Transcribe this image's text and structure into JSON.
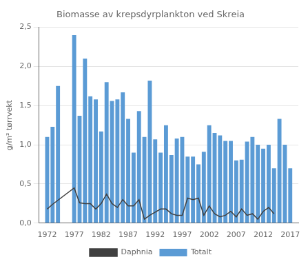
{
  "chart_data": {
    "type": "bar",
    "title": "Biomasse av krepsdyrplankton ved Skreia",
    "ylabel": "g/m² tørrvekt",
    "series": [
      {
        "name": "Totalt",
        "type": "bar",
        "color": "#5B9BD5",
        "x": [
          1972,
          1973,
          1974,
          1977,
          1978,
          1979,
          1980,
          1981,
          1982,
          1983,
          1984,
          1985,
          1986,
          1987,
          1988,
          1989,
          1990,
          1991,
          1992,
          1993,
          1994,
          1995,
          1996,
          1997,
          1998,
          1999,
          2000,
          2001,
          2002,
          2003,
          2004,
          2005,
          2006,
          2007,
          2008,
          2009,
          2010,
          2011,
          2012,
          2013,
          2014,
          2015,
          2016,
          2017
        ],
        "values": [
          1.1,
          1.23,
          1.75,
          2.4,
          1.37,
          2.1,
          1.62,
          1.58,
          1.17,
          1.8,
          1.56,
          1.58,
          1.67,
          1.33,
          0.9,
          1.43,
          1.1,
          1.82,
          1.07,
          0.9,
          1.25,
          0.87,
          1.08,
          1.1,
          0.85,
          0.85,
          0.75,
          0.91,
          1.25,
          1.15,
          1.12,
          1.05,
          1.05,
          0.8,
          0.81,
          1.04,
          1.1,
          1.0,
          0.95,
          1.0,
          0.7,
          1.33,
          1.0,
          0.7
        ]
      },
      {
        "name": "Daphnia",
        "type": "line",
        "color": "#404040",
        "marker": "none",
        "x": [
          1972,
          1973,
          1977,
          1978,
          1979,
          1980,
          1981,
          1982,
          1983,
          1984,
          1985,
          1986,
          1987,
          1988,
          1989,
          1990,
          1991,
          1992,
          1993,
          1994,
          1995,
          1996,
          1997,
          1998,
          1999,
          2000,
          2001,
          2002,
          2003,
          2004,
          2005,
          2006,
          2007,
          2008,
          2009,
          2010,
          2011,
          2012,
          2013,
          2014
        ],
        "values": [
          0.18,
          0.24,
          0.45,
          0.26,
          0.25,
          0.25,
          0.18,
          0.25,
          0.37,
          0.25,
          0.2,
          0.3,
          0.22,
          0.22,
          0.3,
          0.05,
          0.1,
          0.14,
          0.18,
          0.18,
          0.12,
          0.1,
          0.1,
          0.32,
          0.3,
          0.32,
          0.1,
          0.22,
          0.12,
          0.08,
          0.1,
          0.15,
          0.08,
          0.18,
          0.1,
          0.12,
          0.05,
          0.15,
          0.2,
          0.12
        ]
      }
    ],
    "xlim": [
      1970.5,
      2018.5
    ],
    "xticks": [
      1972,
      1977,
      1982,
      1987,
      1992,
      1997,
      2002,
      2007,
      2012,
      2017
    ],
    "ylim": [
      0,
      2.5
    ],
    "yticks": [
      {
        "value": 0.0,
        "label": "0,0"
      },
      {
        "value": 0.5,
        "label": "0,5"
      },
      {
        "value": 1.0,
        "label": "1,0"
      },
      {
        "value": 1.5,
        "label": "1,5"
      },
      {
        "value": 2.0,
        "label": "2,0"
      },
      {
        "value": 2.5,
        "label": "2,5"
      }
    ],
    "grid": "y",
    "legend": "bottom"
  }
}
